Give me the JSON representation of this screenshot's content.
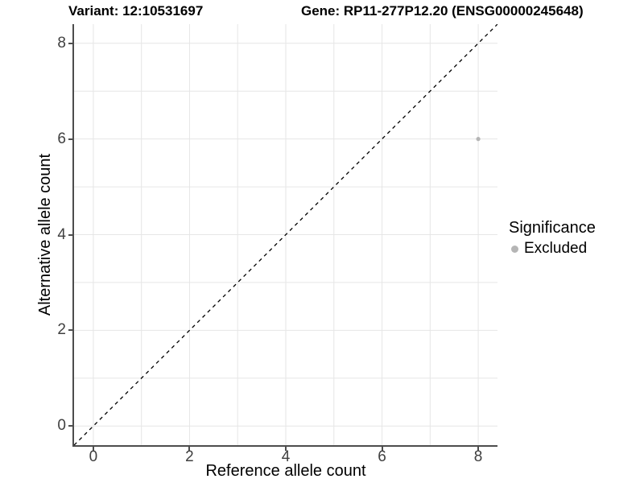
{
  "titles": {
    "variant": "Variant: 12:10531697",
    "gene": "Gene: RP11-277P12.20 (ENSG00000245648)"
  },
  "legend": {
    "title": "Significance",
    "items": [
      {
        "label": "Excluded",
        "color": "#b5b5b5"
      }
    ]
  },
  "chart_data": {
    "type": "scatter",
    "title": "Variant: 12:10531697  Gene: RP11-277P12.20 (ENSG00000245648)",
    "xlabel": "Reference allele count",
    "ylabel": "Alternative allele count",
    "xlim": [
      -0.4,
      8.4
    ],
    "ylim": [
      -0.4,
      8.4
    ],
    "x_ticks": [
      0,
      2,
      4,
      6,
      8
    ],
    "y_ticks": [
      0,
      2,
      4,
      6,
      8
    ],
    "x_gridlines": [
      0,
      1,
      2,
      3,
      4,
      5,
      6,
      7,
      8
    ],
    "y_gridlines": [
      0,
      1,
      2,
      3,
      4,
      5,
      6,
      7,
      8
    ],
    "grid": true,
    "grid_color": "#e6e6e6",
    "background_color": "#ffffff",
    "axis_line_color": "#4d4d4d",
    "reference_line": {
      "type": "identity",
      "style": "dashed",
      "color": "#000000"
    },
    "legend_position": "right",
    "series": [
      {
        "name": "Excluded",
        "color": "#b5b5b5",
        "point_radius": 2.6,
        "points": [
          {
            "x": 8,
            "y": 6
          }
        ]
      }
    ]
  }
}
